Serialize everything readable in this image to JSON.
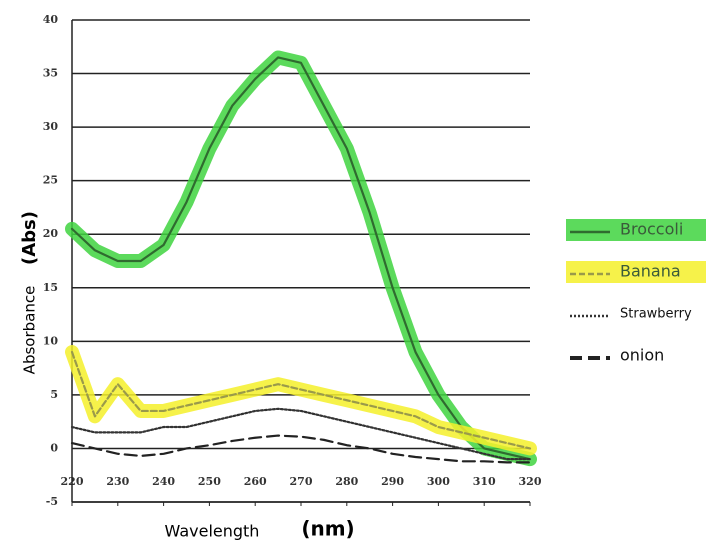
{
  "chart_data": {
    "type": "line",
    "ylabel": "Absorbance",
    "ylabel_unit": "(Abs)",
    "xlabel": "Wavelength",
    "xlabel_unit": "(nm)",
    "x": [
      220,
      225,
      230,
      235,
      240,
      245,
      250,
      255,
      260,
      265,
      270,
      275,
      280,
      285,
      290,
      295,
      300,
      305,
      310,
      315,
      320
    ],
    "series": [
      {
        "name": "Broccoli",
        "color": "#2f6b2f",
        "highlight": "#3fd43f",
        "dash": "solid",
        "values": [
          20.5,
          18.5,
          17.5,
          17.5,
          19,
          23,
          28,
          32,
          34.5,
          36.5,
          36,
          32,
          28,
          22,
          15,
          9,
          5,
          2,
          0,
          -0.5,
          -1
        ]
      },
      {
        "name": "Banana",
        "color": "#9a9a4a",
        "highlight": "#f4f02a",
        "dash": "dashed",
        "values": [
          9,
          3,
          6,
          3.5,
          3.5,
          4,
          4.5,
          5,
          5.5,
          6,
          5.5,
          5,
          4.5,
          4,
          3.5,
          3,
          2,
          1.5,
          1,
          0.5,
          0
        ]
      },
      {
        "name": "Strawberry",
        "color": "#333333",
        "dash": "dotted",
        "values": [
          2,
          1.5,
          1.5,
          1.5,
          2,
          2,
          2.5,
          3,
          3.5,
          3.7,
          3.5,
          3,
          2.5,
          2,
          1.5,
          1,
          0.5,
          0,
          -0.5,
          -1,
          -1
        ]
      },
      {
        "name": "onion",
        "color": "#222222",
        "dash": "longdash",
        "values": [
          0.5,
          0,
          -0.5,
          -0.7,
          -0.5,
          0,
          0.3,
          0.7,
          1,
          1.2,
          1.1,
          0.8,
          0.3,
          0,
          -0.5,
          -0.8,
          -1,
          -1.2,
          -1.2,
          -1.3,
          -1.3
        ]
      }
    ],
    "xlim": [
      220,
      320
    ],
    "xticks": [
      220,
      230,
      240,
      250,
      260,
      270,
      280,
      290,
      300,
      310,
      320
    ],
    "ylim": [
      -5,
      40
    ],
    "yticks": [
      -5,
      0,
      5,
      10,
      15,
      20,
      25,
      30,
      35,
      40
    ],
    "grid": true
  }
}
